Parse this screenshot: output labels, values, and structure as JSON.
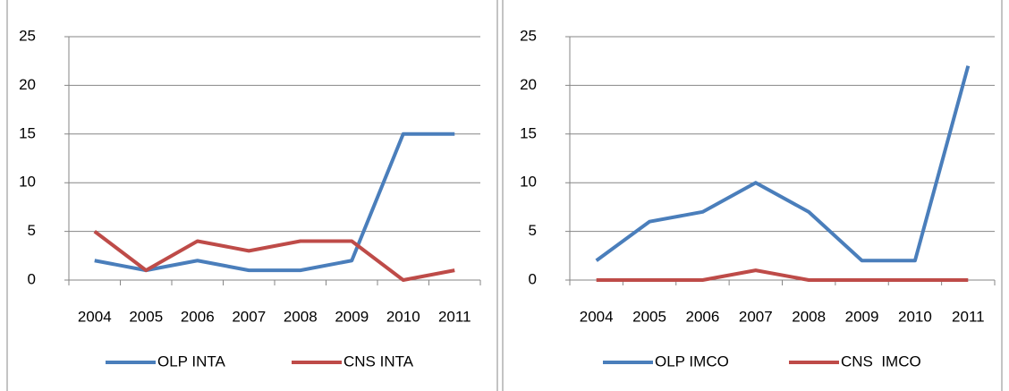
{
  "chart_data": [
    {
      "type": "line",
      "categories": [
        "2004",
        "2005",
        "2006",
        "2007",
        "2008",
        "2009",
        "2010",
        "2011"
      ],
      "series": [
        {
          "name": "OLP INTA",
          "color": "#4a7ebb",
          "values": [
            2,
            1,
            2,
            1,
            1,
            2,
            15,
            15
          ]
        },
        {
          "name": "CNS INTA",
          "color": "#be4b48",
          "values": [
            5,
            1,
            4,
            3,
            4,
            4,
            0,
            1
          ]
        }
      ],
      "ylim": [
        0,
        25
      ],
      "yticks": [
        0,
        5,
        10,
        15,
        20,
        25
      ],
      "grid": true,
      "legend": "bottom"
    },
    {
      "type": "line",
      "categories": [
        "2004",
        "2005",
        "2006",
        "2007",
        "2008",
        "2009",
        "2010",
        "2011"
      ],
      "series": [
        {
          "name": "OLP IMCO",
          "color": "#4a7ebb",
          "values": [
            2,
            6,
            7,
            10,
            7,
            2,
            2,
            22
          ]
        },
        {
          "name": "CNS  IMCO",
          "color": "#be4b48",
          "values": [
            0,
            0,
            0,
            1,
            0,
            0,
            0,
            0
          ]
        }
      ],
      "ylim": [
        0,
        25
      ],
      "yticks": [
        0,
        5,
        10,
        15,
        20,
        25
      ],
      "grid": true,
      "legend": "bottom"
    }
  ]
}
